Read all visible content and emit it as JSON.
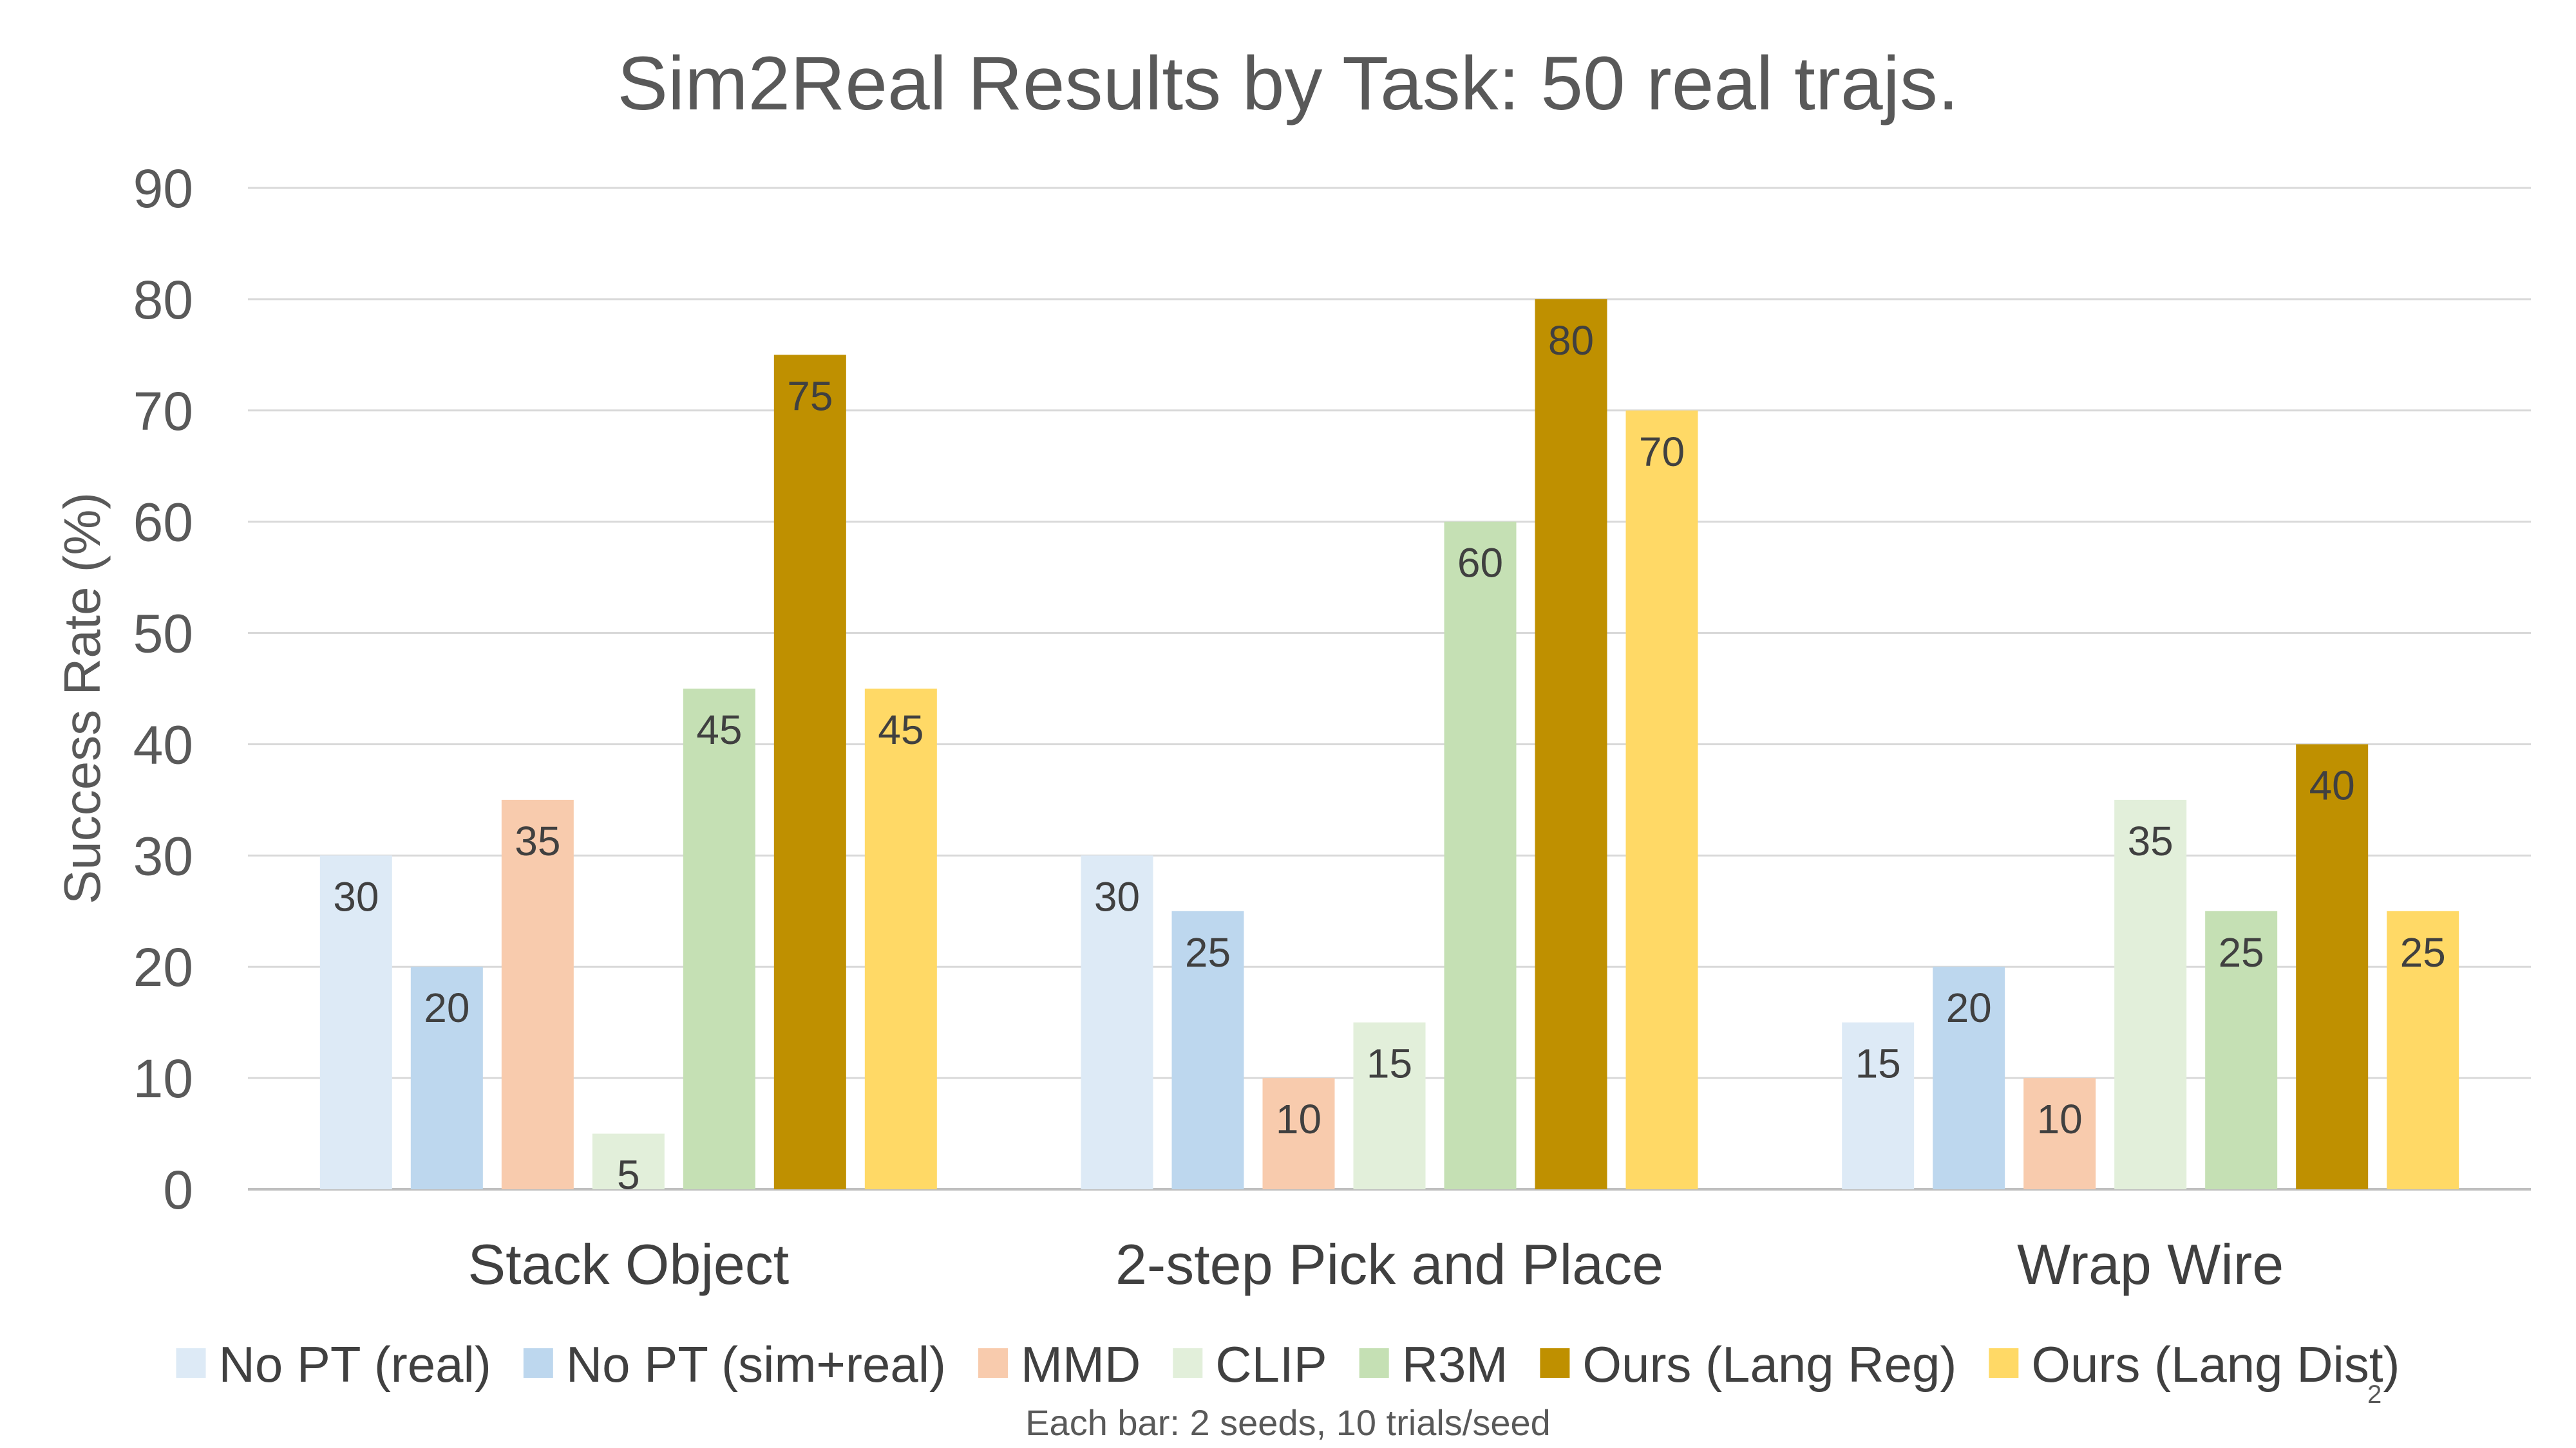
{
  "page_number": "2",
  "chart_data": {
    "type": "bar",
    "title": "Sim2Real Results by Task: 50 real trajs.",
    "ylabel": "Success Rate (%)",
    "xlabel": "",
    "ylim": [
      0,
      90
    ],
    "yticks": [
      0,
      10,
      20,
      30,
      40,
      50,
      60,
      70,
      80,
      90
    ],
    "grid": true,
    "legend_position": "bottom",
    "categories": [
      "Stack Object",
      "2-step Pick and Place",
      "Wrap Wire"
    ],
    "series": [
      {
        "name": "No PT (real)",
        "color": "#ddeaf6",
        "values": [
          30,
          30,
          15
        ]
      },
      {
        "name": "No PT (sim+real)",
        "color": "#bdd7ee",
        "values": [
          20,
          25,
          20
        ]
      },
      {
        "name": "MMD",
        "color": "#f8cbad",
        "values": [
          35,
          10,
          10
        ]
      },
      {
        "name": "CLIP",
        "color": "#e2efda",
        "values": [
          5,
          15,
          35
        ]
      },
      {
        "name": "R3M",
        "color": "#c5e0b4",
        "values": [
          45,
          60,
          25
        ]
      },
      {
        "name": "Ours (Lang Reg)",
        "color": "#bf9000",
        "values": [
          75,
          80,
          40
        ]
      },
      {
        "name": "Ours (Lang Dist)",
        "color": "#ffd966",
        "values": [
          45,
          70,
          25
        ]
      }
    ],
    "footnote": "Each bar: 2 seeds, 10 trials/seed"
  }
}
